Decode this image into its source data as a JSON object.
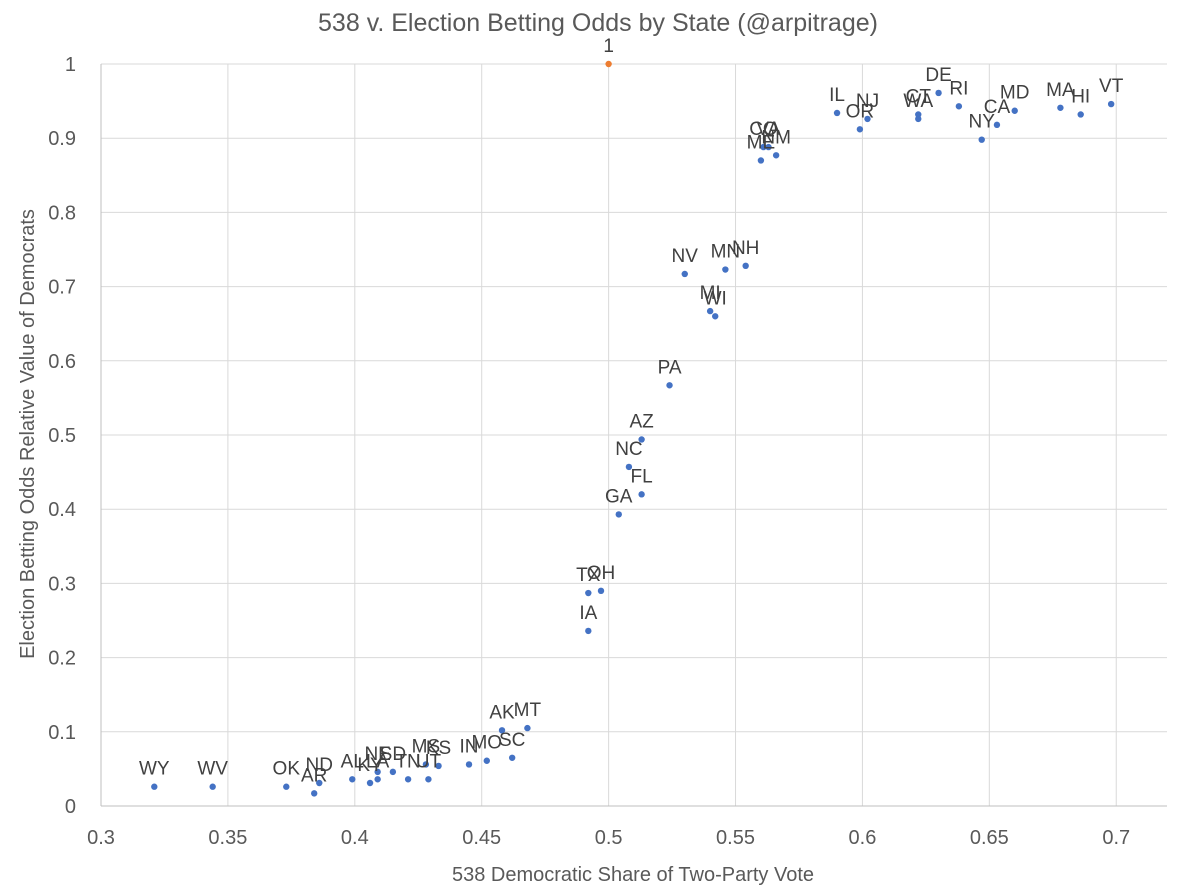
{
  "chart_data": {
    "type": "scatter",
    "title": "538 v. Election Betting Odds by State (@arpitrage)",
    "xlabel": "538 Democratic Share of Two-Party Vote",
    "ylabel": "Election Betting Odds Relative Value of Democrats",
    "xlim": [
      0.3,
      0.72
    ],
    "ylim": [
      0,
      1
    ],
    "x_ticks": [
      "0.3",
      "0.35",
      "0.4",
      "0.45",
      "0.5",
      "0.55",
      "0.6",
      "0.65",
      "0.7"
    ],
    "y_ticks": [
      "0",
      "0.1",
      "0.2",
      "0.3",
      "0.4",
      "0.5",
      "0.6",
      "0.7",
      "0.8",
      "0.9",
      "1"
    ],
    "grid": true,
    "colors": {
      "states": "#4472c4",
      "reference": "#ed7d31"
    },
    "series": [
      {
        "points": [
          {
            "label": "WY",
            "x": 0.321,
            "y": 0.026
          },
          {
            "label": "WV",
            "x": 0.344,
            "y": 0.026
          },
          {
            "label": "OK",
            "x": 0.373,
            "y": 0.026
          },
          {
            "label": "AR",
            "x": 0.384,
            "y": 0.017
          },
          {
            "label": "ND",
            "x": 0.386,
            "y": 0.031
          },
          {
            "label": "AL",
            "x": 0.399,
            "y": 0.036
          },
          {
            "label": "KY",
            "x": 0.406,
            "y": 0.031
          },
          {
            "label": "NE",
            "x": 0.409,
            "y": 0.046
          },
          {
            "label": "LA",
            "x": 0.409,
            "y": 0.036
          },
          {
            "label": "SD",
            "x": 0.415,
            "y": 0.046
          },
          {
            "label": "TN",
            "x": 0.421,
            "y": 0.036
          },
          {
            "label": "UT",
            "x": 0.429,
            "y": 0.036
          },
          {
            "label": "MS",
            "x": 0.428,
            "y": 0.056
          },
          {
            "label": "KS",
            "x": 0.433,
            "y": 0.054
          },
          {
            "label": "IN",
            "x": 0.445,
            "y": 0.056
          },
          {
            "label": "MO",
            "x": 0.452,
            "y": 0.061
          },
          {
            "label": "AK",
            "x": 0.458,
            "y": 0.102
          },
          {
            "label": "SC",
            "x": 0.462,
            "y": 0.065
          },
          {
            "label": "MT",
            "x": 0.468,
            "y": 0.105
          },
          {
            "label": "IA",
            "x": 0.492,
            "y": 0.236
          },
          {
            "label": "TX",
            "x": 0.492,
            "y": 0.287
          },
          {
            "label": "OH",
            "x": 0.497,
            "y": 0.29
          },
          {
            "label": "GA",
            "x": 0.504,
            "y": 0.393
          },
          {
            "label": "NC",
            "x": 0.508,
            "y": 0.457
          },
          {
            "label": "FL",
            "x": 0.513,
            "y": 0.42
          },
          {
            "label": "AZ",
            "x": 0.513,
            "y": 0.494
          },
          {
            "label": "PA",
            "x": 0.524,
            "y": 0.567
          },
          {
            "label": "NV",
            "x": 0.53,
            "y": 0.717
          },
          {
            "label": "MI",
            "x": 0.54,
            "y": 0.667
          },
          {
            "label": "WI",
            "x": 0.542,
            "y": 0.66
          },
          {
            "label": "MN",
            "x": 0.546,
            "y": 0.723
          },
          {
            "label": "NH",
            "x": 0.554,
            "y": 0.728
          },
          {
            "label": "ME",
            "x": 0.56,
            "y": 0.87
          },
          {
            "label": "CO",
            "x": 0.561,
            "y": 0.888
          },
          {
            "label": "VA",
            "x": 0.563,
            "y": 0.888
          },
          {
            "label": "NM",
            "x": 0.566,
            "y": 0.877
          },
          {
            "label": "IL",
            "x": 0.59,
            "y": 0.934
          },
          {
            "label": "OR",
            "x": 0.599,
            "y": 0.912
          },
          {
            "label": "NJ",
            "x": 0.602,
            "y": 0.926
          },
          {
            "label": "WA",
            "x": 0.622,
            "y": 0.926
          },
          {
            "label": "CT",
            "x": 0.622,
            "y": 0.932
          },
          {
            "label": "DE",
            "x": 0.63,
            "y": 0.961
          },
          {
            "label": "RI",
            "x": 0.638,
            "y": 0.943
          },
          {
            "label": "NY",
            "x": 0.647,
            "y": 0.898
          },
          {
            "label": "CA",
            "x": 0.653,
            "y": 0.918
          },
          {
            "label": "MD",
            "x": 0.66,
            "y": 0.937
          },
          {
            "label": "MA",
            "x": 0.678,
            "y": 0.941
          },
          {
            "label": "HI",
            "x": 0.686,
            "y": 0.932
          },
          {
            "label": "VT",
            "x": 0.698,
            "y": 0.946
          }
        ]
      },
      {
        "points": [
          {
            "label": "1",
            "x": 0.5,
            "y": 1.0
          }
        ]
      }
    ]
  }
}
